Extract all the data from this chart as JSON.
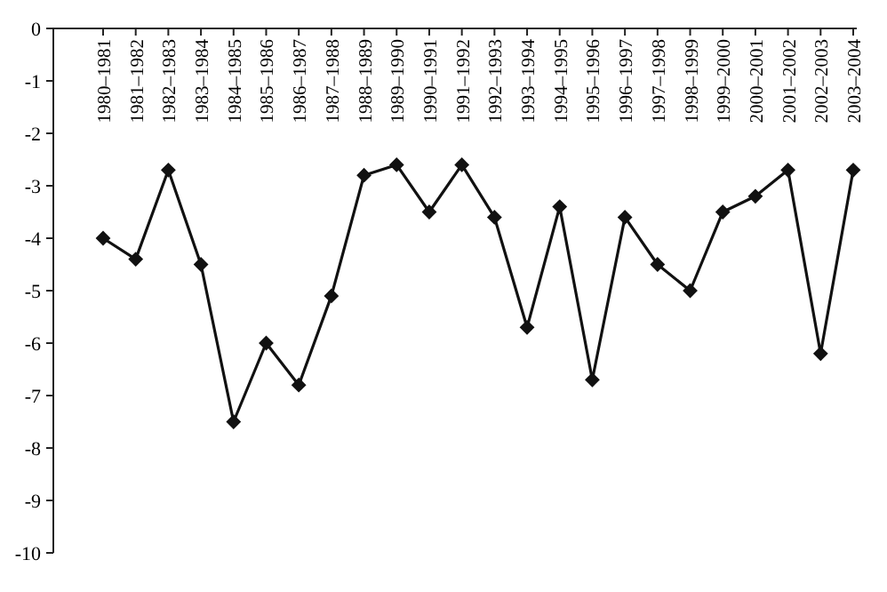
{
  "chart_data": {
    "type": "line",
    "categories": [
      "1980–1981",
      "1981–1982",
      "1982–1983",
      "1983–1984",
      "1984–1985",
      "1985–1986",
      "1986–1987",
      "1987–1988",
      "1988–1989",
      "1989–1990",
      "1990–1991",
      "1991–1992",
      "1992–1993",
      "1993–1994",
      "1994–1995",
      "1995–1996",
      "1996–1997",
      "1997–1998",
      "1998–1999",
      "1999–2000",
      "2000–2001",
      "2001–2002",
      "2002–2003",
      "2003–2004"
    ],
    "series": [
      {
        "color": "#111111",
        "values": [
          -4.0,
          -4.4,
          -2.7,
          -4.5,
          -7.5,
          -6.0,
          -6.8,
          -5.1,
          -2.8,
          -2.6,
          -3.5,
          -2.6,
          -3.6,
          -5.7,
          -3.4,
          -6.7,
          -3.6,
          -4.5,
          -5.0,
          -3.5,
          -3.2,
          -2.7,
          -6.2,
          -2.7
        ]
      }
    ],
    "ylim": [
      -10,
      0
    ],
    "yticks": [
      0,
      -1,
      -2,
      -3,
      -4,
      -5,
      -6,
      -7,
      -8,
      -9,
      -10
    ],
    "marker": "diamond",
    "line_style": "solid"
  }
}
